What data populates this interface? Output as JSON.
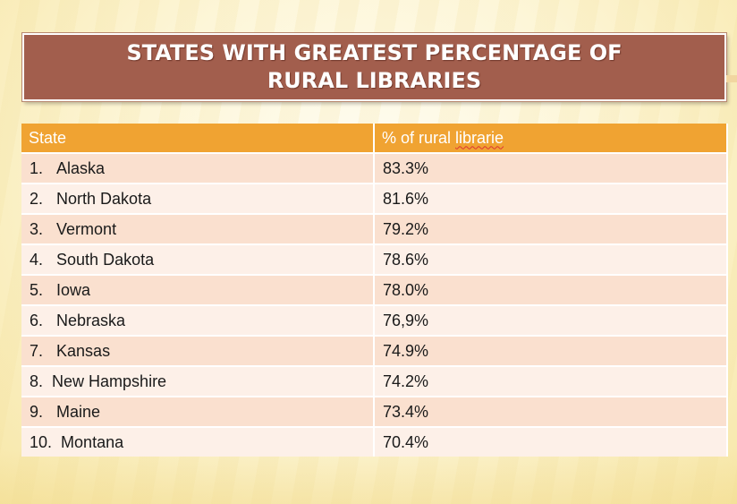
{
  "title": "States with greatest percentage of rural libraries",
  "table": {
    "headers": {
      "state": "State",
      "percent_prefix": "% of rural ",
      "percent_word": "librarie"
    },
    "rows": [
      {
        "num": "1.",
        "state": "Alaska",
        "percent": "83.3%"
      },
      {
        "num": "2.",
        "state": "North Dakota",
        "percent": "81.6%"
      },
      {
        "num": "3.",
        "state": "Vermont",
        "percent": "79.2%"
      },
      {
        "num": "4.",
        "state": "South Dakota",
        "percent": "78.6%"
      },
      {
        "num": "5.",
        "state": "Iowa",
        "percent": "78.0%"
      },
      {
        "num": "6.",
        "state": "Nebraska",
        "percent": "76,9%"
      },
      {
        "num": "7.",
        "state": "Kansas",
        "percent": "74.9%"
      },
      {
        "num": "8.",
        "state": "New Hampshire",
        "percent": "74.2%"
      },
      {
        "num": "9.",
        "state": "Maine",
        "percent": "73.4%"
      },
      {
        "num": "10.",
        "state": "Montana",
        "percent": "70.4%"
      }
    ]
  },
  "colors": {
    "title_background": "#a25e4d",
    "header_background": "#f0a332",
    "row_odd": "#fae0cf",
    "row_even": "#fdf0e8"
  }
}
